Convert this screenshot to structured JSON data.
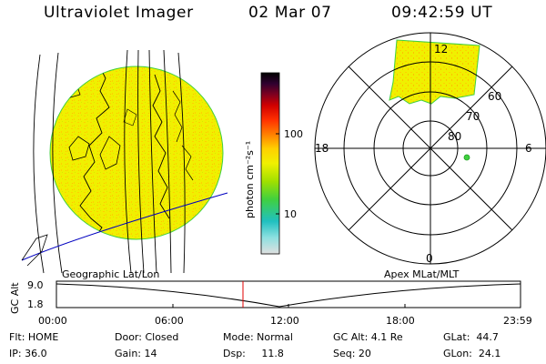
{
  "header": {
    "title": "Ultraviolet Imager",
    "date": "02 Mar 07",
    "time": "09:42:59 UT"
  },
  "colorbar": {
    "unit_label": "photon cm⁻²s⁻¹",
    "ticks": [
      "100",
      "10"
    ],
    "stops": [
      "#e0e0e0",
      "#8de0e0",
      "#20c0c0",
      "#40d040",
      "#a0e000",
      "#f0f000",
      "#ffd000",
      "#ff8000",
      "#ff3000",
      "#d00000",
      "#800020",
      "#300030",
      "#000000"
    ]
  },
  "polar": {
    "top_label": "12",
    "left_label": "18",
    "right_label": "6",
    "bottom_label": "0",
    "ring_labels": [
      "60",
      "70",
      "80"
    ]
  },
  "trajectory": {
    "ylabel": "GC Alt",
    "y_ticks": [
      "9.0",
      "1.8"
    ],
    "left_caption": "Geographic Lat/Lon",
    "right_caption": "Apex MLat/MLT",
    "x_ticks": [
      "00:00",
      "06:00",
      "12:00",
      "18:00",
      "23:59"
    ]
  },
  "status": {
    "flt": "Flt: HOME",
    "door": "Door: Closed",
    "mode": "Mode: Normal",
    "gc_alt": "GC Alt: 4.1 Re",
    "glat": "GLat:  44.7",
    "ip": "IP: 36.0",
    "gain": "Gain: 14",
    "dsp": "Dsp:     11.8",
    "seq": "Seq: 20",
    "glon": "GLon:  24.1"
  },
  "colors": {
    "disk_fill": "#f0f000",
    "speckle": "#ffd000",
    "limb": "#40d040",
    "track": "#0000c0",
    "marker": "#e00000"
  }
}
